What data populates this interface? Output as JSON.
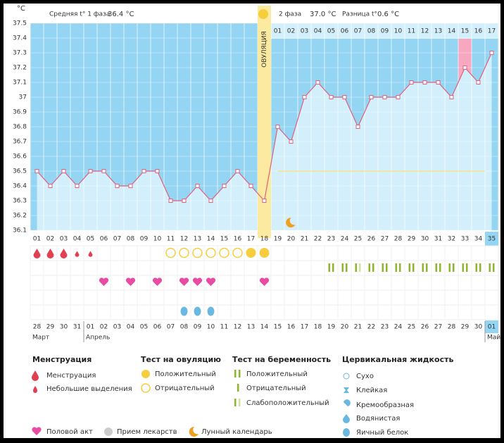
{
  "chart_data": {
    "type": "line",
    "unit": "°C",
    "header": {
      "phase1_label": "Средняя t° 1 фаза",
      "phase1_value": "36.4 °C",
      "phase2_label": "2 фаза",
      "phase2_value": "37.0 °C",
      "diff_label": "Разница t°",
      "diff_value": "0.6 °C"
    },
    "ovulation_label": "ОВУЛЯЦИЯ",
    "ovulation_day": 18,
    "categories": [
      "01",
      "02",
      "03",
      "04",
      "05",
      "06",
      "07",
      "08",
      "09",
      "10",
      "11",
      "12",
      "13",
      "14",
      "15",
      "16",
      "17",
      "18",
      "19",
      "20",
      "21",
      "22",
      "23",
      "24",
      "25",
      "26",
      "27",
      "28",
      "29",
      "30",
      "31",
      "32",
      "33",
      "34",
      "35"
    ],
    "series": [
      {
        "name": "t°",
        "color": "#e0607e",
        "values": [
          36.5,
          36.4,
          36.5,
          36.4,
          36.5,
          36.5,
          36.4,
          36.4,
          36.5,
          36.5,
          36.3,
          36.3,
          36.4,
          36.3,
          36.4,
          36.5,
          36.4,
          36.3,
          36.8,
          36.7,
          37.0,
          37.1,
          37.0,
          37.0,
          36.8,
          37.0,
          37.0,
          37.0,
          37.1,
          37.1,
          37.1,
          37.0,
          37.2,
          37.1,
          37.3
        ]
      }
    ],
    "phase2_days": [
      "01",
      "02",
      "03",
      "04",
      "05",
      "06",
      "07",
      "08",
      "09",
      "10",
      "11",
      "12",
      "13",
      "14",
      "15",
      "16",
      "17"
    ],
    "phase2_highlight": 15,
    "current_day": 35,
    "coverline": 36.5,
    "moon_day": 20,
    "ylim": [
      36.1,
      37.5
    ],
    "yticks": [
      37.5,
      37.4,
      37.3,
      37.2,
      37.1,
      {
        "value": 37.0,
        "label": "37"
      },
      36.9,
      36.8,
      36.7,
      36.6,
      36.5,
      36.4,
      36.3,
      36.2,
      36.1
    ]
  },
  "marks": {
    "menstruation": [
      1,
      2,
      3
    ],
    "spotting": [
      4,
      5
    ],
    "ovulation_positive": [
      17,
      18
    ],
    "ovulation_negative": [
      11,
      12,
      13,
      14,
      15,
      16
    ],
    "pregnancy_positive": [
      23,
      24,
      26,
      27,
      28,
      29,
      30,
      31,
      32,
      33,
      34,
      35
    ],
    "pregnancy_weak": [
      25
    ],
    "intercourse": [
      6,
      8,
      10,
      12,
      13,
      14,
      18
    ],
    "egg_white": [
      12,
      13,
      14
    ]
  },
  "dates": [
    "28",
    "29",
    "30",
    "31",
    "01",
    "02",
    "03",
    "04",
    "05",
    "06",
    "07",
    "08",
    "09",
    "10",
    "11",
    "12",
    "13",
    "14",
    "15",
    "16",
    "17",
    "18",
    "19",
    "20",
    "21",
    "22",
    "23",
    "24",
    "25",
    "26",
    "27",
    "28",
    "29",
    "30",
    "01"
  ],
  "weekend_dates": [
    0,
    1,
    7,
    8,
    14,
    15,
    21,
    22,
    28,
    29
  ],
  "months": [
    {
      "name": "Март",
      "start": 0
    },
    {
      "name": "Апрель",
      "start": 4
    },
    {
      "name": "Май",
      "start": 34
    }
  ],
  "legend": {
    "menstruation_title": "Менструация",
    "menstruation": "Менструация",
    "spotting": "Небольшие выделения",
    "ovulation_title": "Тест на овуляцию",
    "ovulation_positive": "Положительный",
    "ovulation_negative": "Отрицательный",
    "pregnancy_title": "Тест на беременность",
    "pregnancy_positive": "Положительный",
    "pregnancy_negative": "Отрицательный",
    "pregnancy_weak": "Слабоположительный",
    "fluid_title": "Цервикальная жидкость",
    "dry": "Сухо",
    "sticky": "Клейкая",
    "creamy": "Кремообразная",
    "watery": "Водянистая",
    "egg_white": "Яичный белок",
    "intercourse": "Половой акт",
    "medication": "Прием лекарств",
    "moon": "Лунный календарь"
  }
}
